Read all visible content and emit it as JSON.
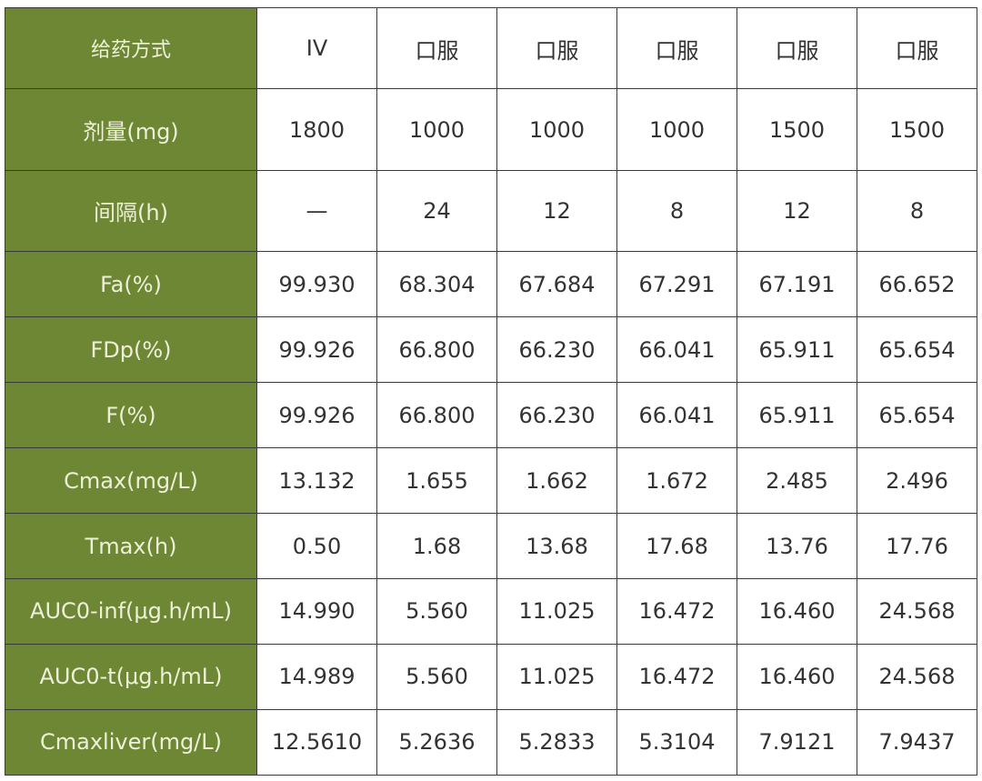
{
  "colors": {
    "header_bg": "#6d8735",
    "header_text": "#eef0d8"
  },
  "rows": [
    {
      "label": "给药方式",
      "values": [
        "IV",
        "口服",
        "口服",
        "口服",
        "口服",
        "口服"
      ]
    },
    {
      "label": "剂量(mg)",
      "values": [
        "1800",
        "1000",
        "1000",
        "1000",
        "1500",
        "1500"
      ]
    },
    {
      "label": "间隔(h)",
      "values": [
        "—",
        "24",
        "12",
        "8",
        "12",
        "8"
      ]
    },
    {
      "label": "Fa(%)",
      "values": [
        "99.930",
        "68.304",
        "67.684",
        "67.291",
        "67.191",
        "66.652"
      ]
    },
    {
      "label": "FDp(%)",
      "values": [
        "99.926",
        "66.800",
        "66.230",
        "66.041",
        "65.911",
        "65.654"
      ]
    },
    {
      "label": "F(%)",
      "values": [
        "99.926",
        "66.800",
        "66.230",
        "66.041",
        "65.911",
        "65.654"
      ]
    },
    {
      "label": "Cmax(mg/L)",
      "values": [
        "13.132",
        "1.655",
        "1.662",
        "1.672",
        "2.485",
        "2.496"
      ]
    },
    {
      "label": "Tmax(h)",
      "values": [
        "0.50",
        "1.68",
        "13.68",
        "17.68",
        "13.76",
        "17.76"
      ]
    },
    {
      "label": "AUC0-inf(μg.h/mL)",
      "values": [
        "14.990",
        "5.560",
        "11.025",
        "16.472",
        "16.460",
        "24.568"
      ]
    },
    {
      "label": "AUC0-t(μg.h/mL)",
      "values": [
        "14.989",
        "5.560",
        "11.025",
        "16.472",
        "16.460",
        "24.568"
      ]
    },
    {
      "label": "Cmaxliver(mg/L)",
      "values": [
        "12.5610",
        "5.2636",
        "5.2833",
        "5.3104",
        "7.9121",
        "7.9437"
      ]
    }
  ]
}
